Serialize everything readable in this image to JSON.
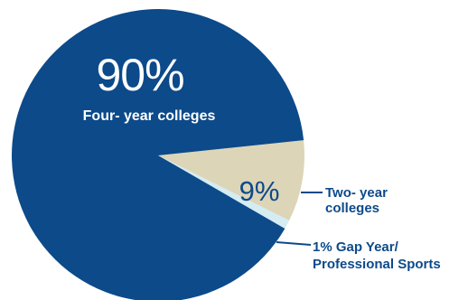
{
  "chart_data": {
    "type": "pie",
    "title": "",
    "colors": [
      "#0c4a8a",
      "#ddd5b8",
      "#d4ecf2"
    ],
    "slices": [
      {
        "inner_value": "90%",
        "inner_label": "Four- year colleges",
        "value": 90
      },
      {
        "inner_value": "9%",
        "label_lines": [
          "Two- year",
          "colleges"
        ],
        "value": 9
      },
      {
        "label_lines": [
          "1% Gap Year/",
          "Professional Sports"
        ],
        "value": 1
      }
    ]
  }
}
